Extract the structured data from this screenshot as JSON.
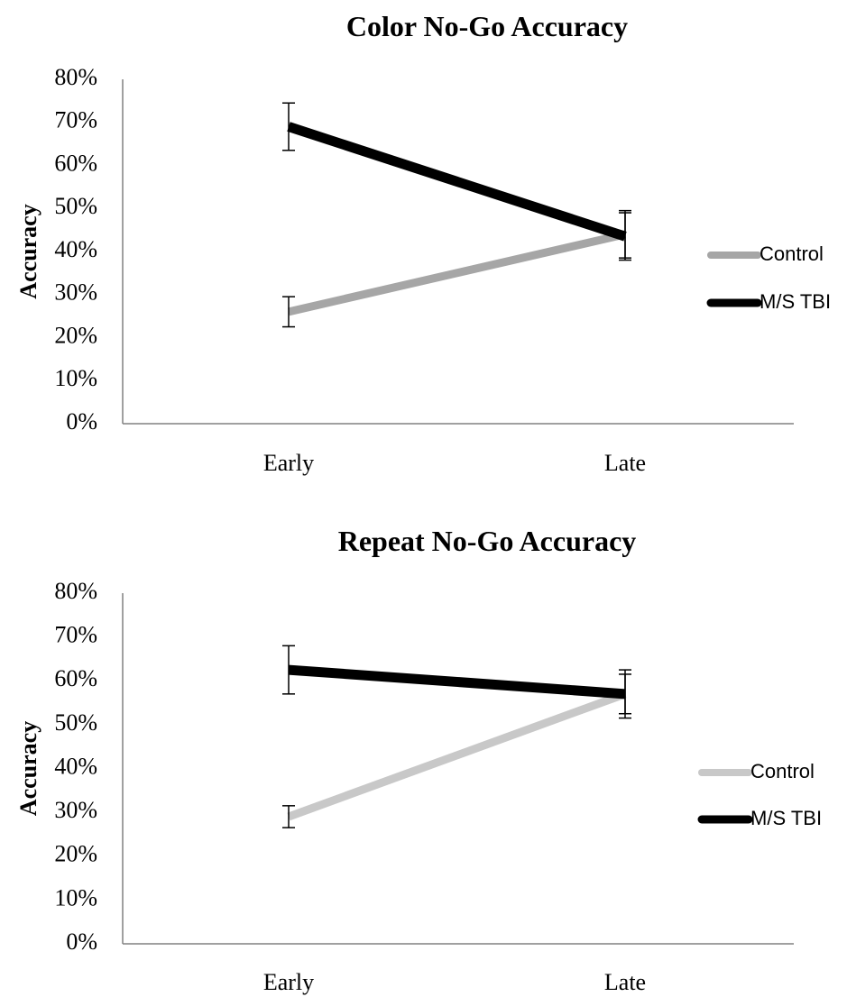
{
  "chart_data": [
    {
      "type": "line",
      "title": "Color No-Go Accuracy",
      "xlabel": "",
      "ylabel": "Accuracy",
      "categories": [
        "Early",
        "Late"
      ],
      "ylim": [
        0,
        80
      ],
      "yticks": [
        "0%",
        "10%",
        "20%",
        "30%",
        "40%",
        "50%",
        "60%",
        "70%",
        "80%"
      ],
      "grid": false,
      "legend_position": "right",
      "series": [
        {
          "name": "Control",
          "values": [
            26,
            44
          ],
          "error": [
            3.5,
            5.5
          ],
          "color": "#a6a6a6"
        },
        {
          "name": "M/S TBI",
          "values": [
            69,
            43.5
          ],
          "error": [
            5.5,
            5.5
          ],
          "color": "#000000"
        }
      ]
    },
    {
      "type": "line",
      "title": "Repeat No-Go Accuracy",
      "xlabel": "",
      "ylabel": "Accuracy",
      "categories": [
        "Early",
        "Late"
      ],
      "ylim": [
        0,
        80
      ],
      "yticks": [
        "0%",
        "10%",
        "20%",
        "30%",
        "40%",
        "50%",
        "60%",
        "70%",
        "80%"
      ],
      "grid": false,
      "legend_position": "right",
      "series": [
        {
          "name": "Control",
          "values": [
            29,
            57
          ],
          "error": [
            2.5,
            4.5
          ],
          "color": "#c8c8c8"
        },
        {
          "name": "M/S TBI",
          "values": [
            62.5,
            57
          ],
          "error": [
            5.5,
            5.5
          ],
          "color": "#000000"
        }
      ]
    }
  ]
}
